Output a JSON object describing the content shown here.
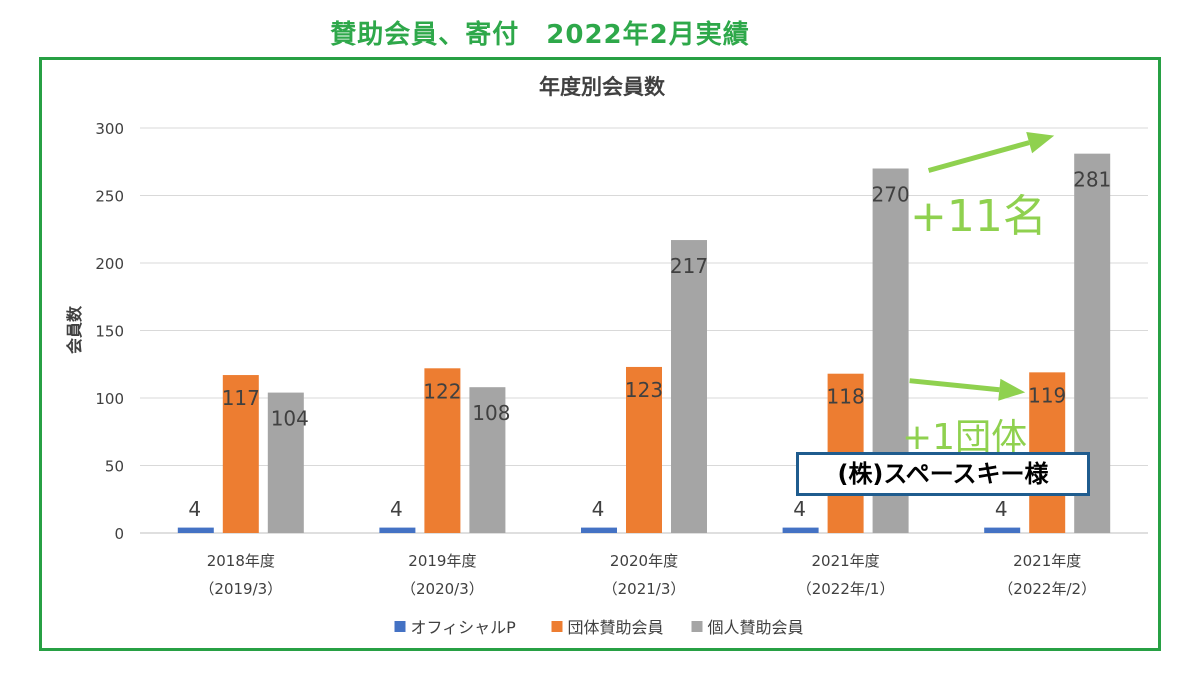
{
  "page_title": "賛助会員、寄付　2022年2月実績",
  "chart_data": {
    "type": "bar",
    "title": "年度別会員数",
    "xlabel": "",
    "ylabel": "会員数",
    "ylim": [
      0,
      300
    ],
    "yticks": [
      0,
      50,
      100,
      150,
      200,
      250,
      300
    ],
    "grid": true,
    "legend_position": "bottom",
    "categories": [
      [
        "2018年度",
        "（2019/3）"
      ],
      [
        "2019年度",
        "（2020/3）"
      ],
      [
        "2020年度",
        "（2021/3）"
      ],
      [
        "2021年度",
        "（2022年/1）"
      ],
      [
        "2021年度",
        "（2022年/2）"
      ]
    ],
    "series": [
      {
        "name": "オフィシャルP",
        "color": "#4472c4",
        "values": [
          4,
          4,
          4,
          4,
          4
        ]
      },
      {
        "name": "団体賛助会員",
        "color": "#ed7d31",
        "values": [
          117,
          122,
          123,
          118,
          119
        ]
      },
      {
        "name": "個人賛助会員",
        "color": "#a5a5a5",
        "values": [
          104,
          108,
          217,
          270,
          281
        ]
      }
    ]
  },
  "annotations": {
    "individual_delta": "+11名",
    "group_delta": "+1団体",
    "sponsor_callout": "(株)スペースキー様",
    "arrow_color": "#8fd14f"
  }
}
